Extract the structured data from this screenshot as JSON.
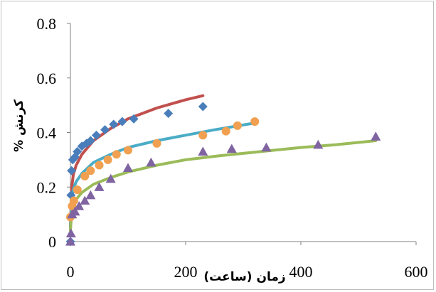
{
  "chart_data": {
    "type": "scatter",
    "title": "",
    "xlabel": "زمان (ساعت)",
    "ylabel": "کرنش %",
    "xlim": [
      0,
      600
    ],
    "ylim": [
      0,
      0.8
    ],
    "xticks": [
      0,
      200,
      400,
      600
    ],
    "yticks": [
      0,
      0.2,
      0.4,
      0.6,
      0.8
    ],
    "xtick_labels": [
      "0",
      "200",
      "400",
      "600"
    ],
    "ytick_labels": [
      "0",
      "0.2",
      "0.4",
      "0.6",
      "0.8"
    ],
    "grid": false,
    "legend": "none",
    "series": [
      {
        "marker": "diamond",
        "color": "#4a7ebb",
        "points": [
          [
            0,
            0
          ],
          [
            1,
            0.17
          ],
          [
            2,
            0.26
          ],
          [
            4,
            0.3
          ],
          [
            8,
            0.31
          ],
          [
            12,
            0.33
          ],
          [
            20,
            0.35
          ],
          [
            28,
            0.36
          ],
          [
            35,
            0.37
          ],
          [
            45,
            0.39
          ],
          [
            60,
            0.41
          ],
          [
            75,
            0.43
          ],
          [
            90,
            0.44
          ],
          [
            110,
            0.45
          ],
          [
            170,
            0.47
          ],
          [
            230,
            0.495
          ]
        ]
      },
      {
        "marker": "circle",
        "color": "#f0a050",
        "points": [
          [
            0,
            0.09
          ],
          [
            3,
            0.13
          ],
          [
            6,
            0.15
          ],
          [
            12,
            0.19
          ],
          [
            25,
            0.24
          ],
          [
            35,
            0.26
          ],
          [
            50,
            0.28
          ],
          [
            65,
            0.3
          ],
          [
            80,
            0.32
          ],
          [
            100,
            0.335
          ],
          [
            150,
            0.36
          ],
          [
            230,
            0.39
          ],
          [
            270,
            0.405
          ],
          [
            290,
            0.425
          ],
          [
            320,
            0.44
          ]
        ]
      },
      {
        "marker": "triangle",
        "color": "#8064a2",
        "points": [
          [
            0,
            0
          ],
          [
            1,
            0.03
          ],
          [
            3,
            0.1
          ],
          [
            8,
            0.11
          ],
          [
            15,
            0.13
          ],
          [
            25,
            0.15
          ],
          [
            35,
            0.17
          ],
          [
            50,
            0.2
          ],
          [
            70,
            0.23
          ],
          [
            100,
            0.27
          ],
          [
            140,
            0.29
          ],
          [
            230,
            0.33
          ],
          [
            280,
            0.34
          ],
          [
            340,
            0.345
          ],
          [
            430,
            0.355
          ],
          [
            530,
            0.385
          ]
        ]
      }
    ],
    "fit_lines": [
      {
        "color": "#c0504d",
        "points": [
          [
            0,
            0.05
          ],
          [
            2,
            0.19
          ],
          [
            5,
            0.245
          ],
          [
            10,
            0.28
          ],
          [
            20,
            0.32
          ],
          [
            40,
            0.37
          ],
          [
            70,
            0.415
          ],
          [
            100,
            0.45
          ],
          [
            150,
            0.49
          ],
          [
            200,
            0.52
          ],
          [
            230,
            0.535
          ]
        ]
      },
      {
        "color": "#4bacc6",
        "points": [
          [
            0,
            0.05
          ],
          [
            2,
            0.15
          ],
          [
            5,
            0.19
          ],
          [
            10,
            0.22
          ],
          [
            20,
            0.25
          ],
          [
            40,
            0.29
          ],
          [
            70,
            0.32
          ],
          [
            100,
            0.345
          ],
          [
            150,
            0.37
          ],
          [
            200,
            0.39
          ],
          [
            250,
            0.41
          ],
          [
            320,
            0.435
          ]
        ]
      },
      {
        "color": "#9bbb59",
        "points": [
          [
            0,
            0.04
          ],
          [
            2,
            0.1
          ],
          [
            5,
            0.13
          ],
          [
            10,
            0.155
          ],
          [
            20,
            0.18
          ],
          [
            40,
            0.21
          ],
          [
            70,
            0.235
          ],
          [
            100,
            0.255
          ],
          [
            150,
            0.28
          ],
          [
            200,
            0.3
          ],
          [
            260,
            0.315
          ],
          [
            330,
            0.33
          ],
          [
            400,
            0.345
          ],
          [
            460,
            0.355
          ],
          [
            530,
            0.37
          ]
        ]
      }
    ]
  }
}
